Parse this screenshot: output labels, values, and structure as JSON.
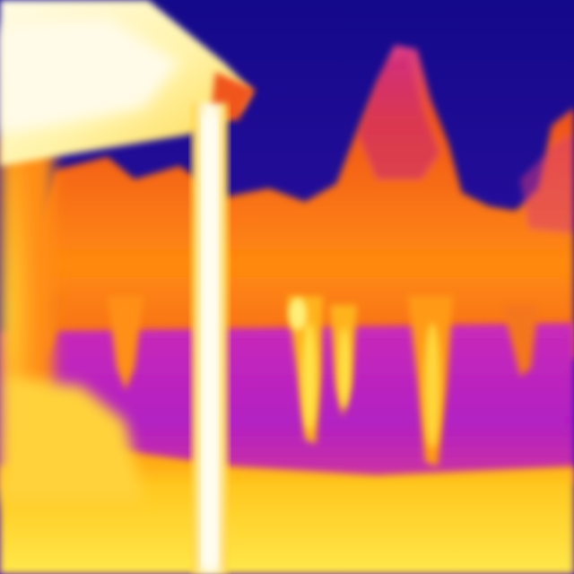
{
  "image": {
    "kind": "thermal-infrared-photo",
    "palette": "ironbow",
    "palette_colors": {
      "coldest": "#1a0f8a",
      "cold": "#4a14a8",
      "cool": "#b020c0",
      "warm": "#f04e1a",
      "hot": "#ffa21a",
      "hotter": "#ffe030",
      "hottest": "#fffbe0"
    },
    "subjects": [
      "sky",
      "tree-line",
      "shadowed-lawn",
      "foreground-grass",
      "house-roof-eave",
      "porch-post"
    ]
  }
}
